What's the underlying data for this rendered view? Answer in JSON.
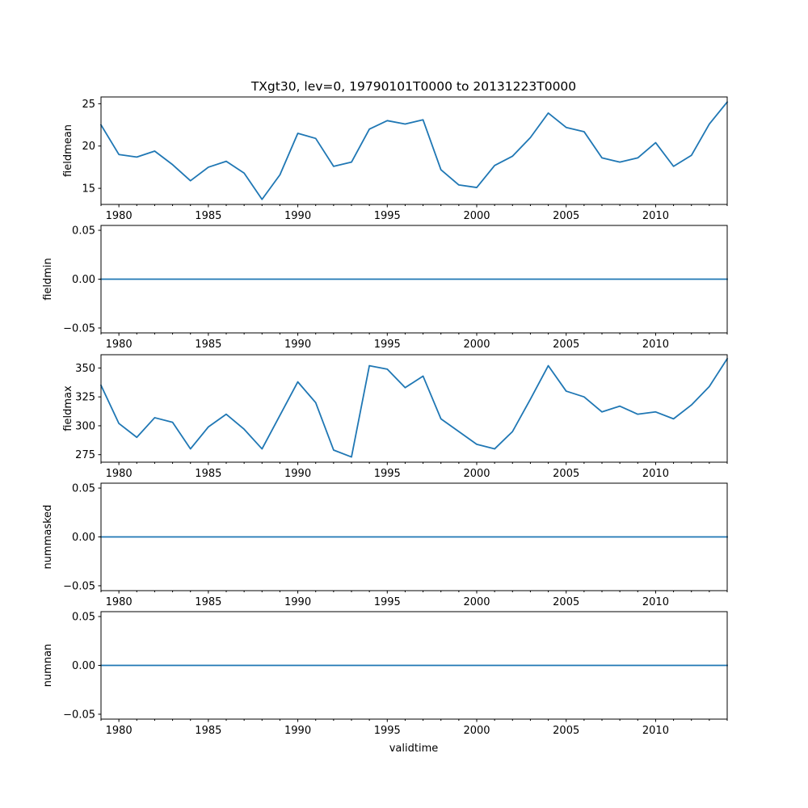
{
  "chart_data": {
    "type": "line",
    "title": "TXgt30, lev=0, 19790101T0000 to 20131223T0000",
    "xlabel": "validtime",
    "line_color": "#1f77b4",
    "x": [
      1979,
      1980,
      1981,
      1982,
      1983,
      1984,
      1985,
      1986,
      1987,
      1988,
      1989,
      1990,
      1991,
      1992,
      1993,
      1994,
      1995,
      1996,
      1997,
      1998,
      1999,
      2000,
      2001,
      2002,
      2003,
      2004,
      2005,
      2006,
      2007,
      2008,
      2009,
      2010,
      2011,
      2012,
      2013,
      2014
    ],
    "xlim": [
      1979,
      2014
    ],
    "xticks": [
      1980,
      1985,
      1990,
      1995,
      2000,
      2005,
      2010
    ],
    "xtick_labels": [
      "1980",
      "1985",
      "1990",
      "1995",
      "2000",
      "2005",
      "2010"
    ],
    "panels": [
      {
        "ylabel": "fieldmean",
        "ylim": [
          13.1,
          25.8
        ],
        "yticks": [
          15,
          20,
          25
        ],
        "ytick_labels": [
          "15",
          "20",
          "25"
        ],
        "values": [
          22.5,
          19.0,
          18.7,
          19.4,
          17.8,
          15.9,
          17.5,
          18.2,
          16.8,
          13.7,
          16.6,
          21.5,
          20.9,
          17.6,
          18.1,
          22.0,
          23.0,
          22.6,
          23.1,
          17.2,
          15.4,
          15.1,
          17.7,
          18.8,
          21.0,
          23.9,
          22.2,
          21.7,
          18.6,
          18.1,
          18.6,
          20.4,
          17.6,
          18.9,
          22.6,
          25.2
        ]
      },
      {
        "ylabel": "fieldmin",
        "ylim": [
          -0.055,
          0.055
        ],
        "yticks": [
          -0.05,
          0.0,
          0.05
        ],
        "ytick_labels": [
          "−0.05",
          "0.00",
          "0.05"
        ],
        "values": [
          0,
          0,
          0,
          0,
          0,
          0,
          0,
          0,
          0,
          0,
          0,
          0,
          0,
          0,
          0,
          0,
          0,
          0,
          0,
          0,
          0,
          0,
          0,
          0,
          0,
          0,
          0,
          0,
          0,
          0,
          0,
          0,
          0,
          0,
          0,
          0
        ]
      },
      {
        "ylabel": "fieldmax",
        "ylim": [
          268.5,
          361.5
        ],
        "yticks": [
          275,
          300,
          325,
          350
        ],
        "ytick_labels": [
          "275",
          "300",
          "325",
          "350"
        ],
        "values": [
          335,
          302,
          290,
          307,
          303,
          280,
          299,
          310,
          297,
          280,
          309,
          338,
          320,
          279,
          273,
          352,
          349,
          333,
          343,
          306,
          295,
          284,
          280,
          295,
          323,
          352,
          330,
          325,
          312,
          317,
          310,
          312,
          306,
          318,
          334,
          358
        ]
      },
      {
        "ylabel": "nummasked",
        "ylim": [
          -0.055,
          0.055
        ],
        "yticks": [
          -0.05,
          0.0,
          0.05
        ],
        "ytick_labels": [
          "−0.05",
          "0.00",
          "0.05"
        ],
        "values": [
          0,
          0,
          0,
          0,
          0,
          0,
          0,
          0,
          0,
          0,
          0,
          0,
          0,
          0,
          0,
          0,
          0,
          0,
          0,
          0,
          0,
          0,
          0,
          0,
          0,
          0,
          0,
          0,
          0,
          0,
          0,
          0,
          0,
          0,
          0,
          0
        ]
      },
      {
        "ylabel": "numnan",
        "ylim": [
          -0.055,
          0.055
        ],
        "yticks": [
          -0.05,
          0.0,
          0.05
        ],
        "ytick_labels": [
          "−0.05",
          "0.00",
          "0.05"
        ],
        "values": [
          0,
          0,
          0,
          0,
          0,
          0,
          0,
          0,
          0,
          0,
          0,
          0,
          0,
          0,
          0,
          0,
          0,
          0,
          0,
          0,
          0,
          0,
          0,
          0,
          0,
          0,
          0,
          0,
          0,
          0,
          0,
          0,
          0,
          0,
          0,
          0
        ]
      }
    ]
  }
}
